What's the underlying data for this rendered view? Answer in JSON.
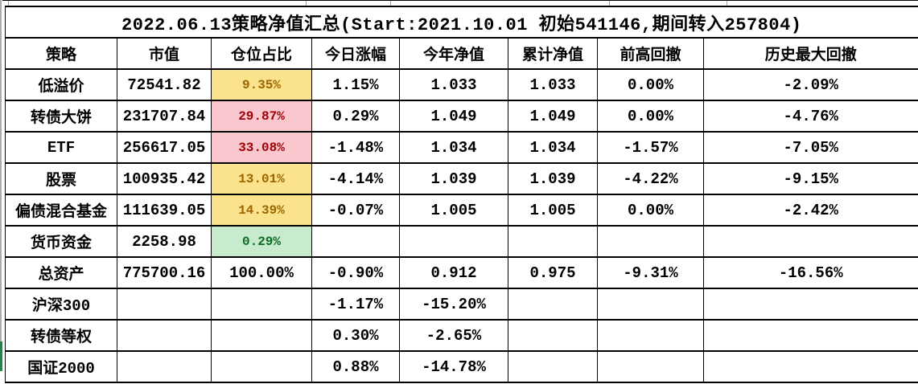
{
  "title": "2022.06.13策略净值汇总(Start:2021.10.01 初始541146,期间转入257804)",
  "table": {
    "columns": [
      "策略",
      "市值",
      "仓位占比",
      "今日涨幅",
      "今年净值",
      "累计净值",
      "前高回撤",
      "历史最大回撤"
    ],
    "rows": [
      {
        "highlight": "yellow",
        "cells": [
          "低溢价",
          "72541.82",
          "9.35%",
          "1.15%",
          "1.033",
          "1.033",
          "0.00%",
          "-2.09%"
        ]
      },
      {
        "highlight": "red",
        "cells": [
          "转债大饼",
          "231707.84",
          "29.87%",
          "0.29%",
          "1.049",
          "1.049",
          "0.00%",
          "-4.76%"
        ]
      },
      {
        "highlight": "red",
        "cells": [
          "ETF",
          "256617.05",
          "33.08%",
          "-1.48%",
          "1.034",
          "1.034",
          "-1.57%",
          "-7.05%"
        ]
      },
      {
        "highlight": "yellow",
        "cells": [
          "股票",
          "100935.42",
          "13.01%",
          "-4.14%",
          "1.039",
          "1.039",
          "-4.22%",
          "-9.15%"
        ]
      },
      {
        "highlight": "yellow",
        "cells": [
          "偏债混合基金",
          "111639.05",
          "14.39%",
          "-0.07%",
          "1.005",
          "1.005",
          "0.00%",
          "-2.42%"
        ]
      },
      {
        "highlight": "green",
        "cells": [
          "货币资金",
          "2258.98",
          "0.29%",
          "",
          "",
          "",
          "",
          ""
        ]
      },
      {
        "highlight": null,
        "cells": [
          "总资产",
          "775700.16",
          "100.00%",
          "-0.90%",
          "0.912",
          "0.975",
          "-9.31%",
          "-16.56%"
        ]
      },
      {
        "highlight": null,
        "cells": [
          "沪深300",
          "",
          "",
          "-1.17%",
          "-15.20%",
          "",
          "",
          ""
        ]
      },
      {
        "highlight": null,
        "cells": [
          "转债等权",
          "",
          "",
          "0.30%",
          "-2.65%",
          "",
          "",
          ""
        ]
      },
      {
        "highlight": null,
        "cells": [
          "国证2000",
          "",
          "",
          "0.88%",
          "-14.78%",
          "",
          "",
          ""
        ]
      }
    ]
  },
  "colors": {
    "highlight_yellow": {
      "bg": "#FBE28C",
      "text": "#9C6500"
    },
    "highlight_red": {
      "bg": "#FBC7CE",
      "text": "#9C0006"
    },
    "highlight_green": {
      "bg": "#C8EACD",
      "text": "#0B6B23"
    },
    "border": "#000000",
    "edge_marker_green": "#2E7D4E",
    "gridline_gray": "#A6A6A6"
  }
}
